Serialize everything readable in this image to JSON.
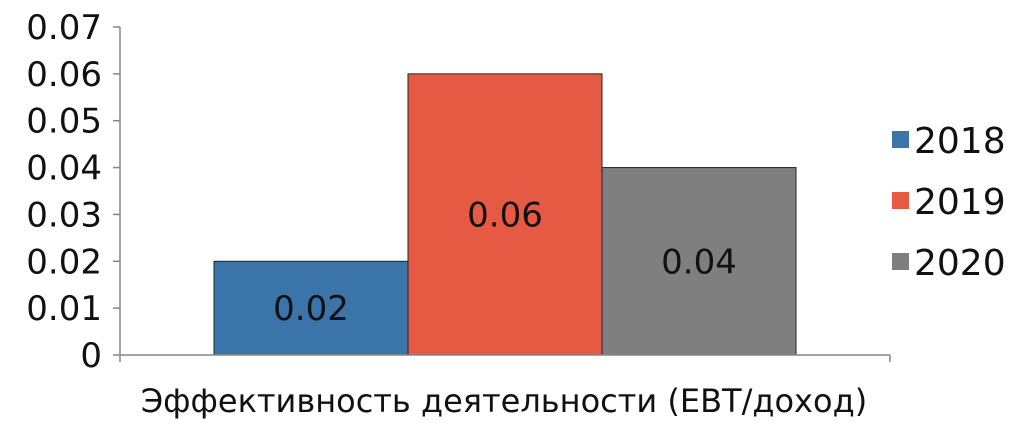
{
  "chart_data": {
    "type": "bar",
    "categories": [
      "Эффективность деятельности (EBT/доход)"
    ],
    "series": [
      {
        "name": "2018",
        "values": [
          0.02
        ],
        "color": "#3b74a8"
      },
      {
        "name": "2019",
        "values": [
          0.06
        ],
        "color": "#e65a43"
      },
      {
        "name": "2020",
        "values": [
          0.04
        ],
        "color": "#7f7f7f"
      }
    ],
    "data_labels": [
      "0.02",
      "0.06",
      "0.04"
    ],
    "ylim": [
      0,
      0.07
    ],
    "y_ticks": [
      "0",
      "0.01",
      "0.02",
      "0.03",
      "0.04",
      "0.05",
      "0.06",
      "0.07"
    ],
    "xlabel": "Эффективность деятельности (EBT/доход)",
    "legend_position": "right",
    "grid": false
  }
}
